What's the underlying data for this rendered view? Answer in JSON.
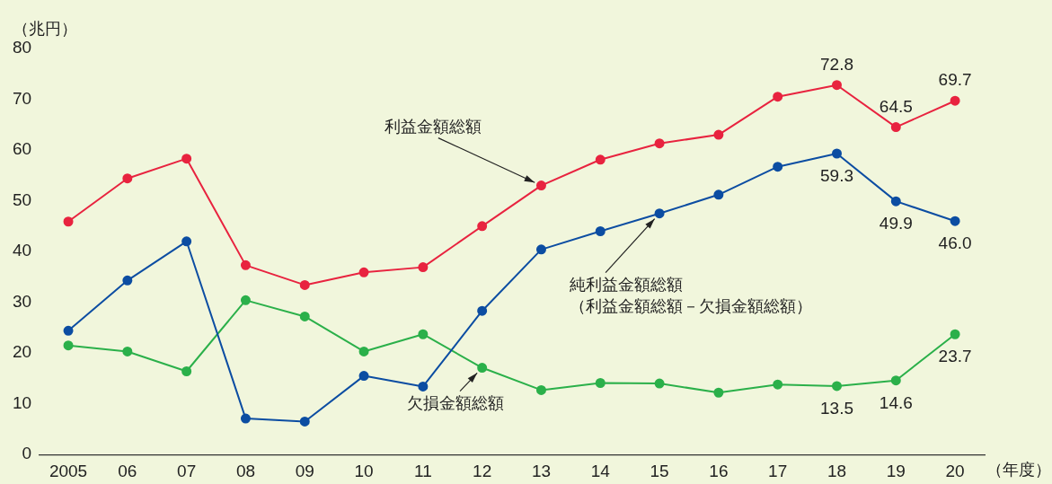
{
  "chart_data": {
    "type": "line",
    "ylabel": "（兆円）",
    "xlabel": "（年度）",
    "categories": [
      "2005",
      "06",
      "07",
      "08",
      "09",
      "10",
      "11",
      "12",
      "13",
      "14",
      "15",
      "16",
      "17",
      "18",
      "19",
      "20"
    ],
    "ylim": [
      0,
      80
    ],
    "yticks": [
      0,
      10,
      20,
      30,
      40,
      50,
      60,
      70,
      80
    ],
    "grid": false,
    "legend": false,
    "marker": "circle",
    "line_style": "solid",
    "series": [
      {
        "name": "利益金額総額",
        "color": "#e8233f",
        "values": [
          45.9,
          54.4,
          58.3,
          37.3,
          33.4,
          35.9,
          36.9,
          45.0,
          53.0,
          58.1,
          61.3,
          63.0,
          70.5,
          72.8,
          64.5,
          69.7
        ],
        "value_labels": [
          null,
          null,
          null,
          null,
          null,
          null,
          null,
          null,
          null,
          null,
          null,
          null,
          null,
          "72.8",
          "64.5",
          "69.7"
        ]
      },
      {
        "name": "純利益金額総額（利益金額総額－欠損金額総額）",
        "color": "#0c4da2",
        "values": [
          24.4,
          34.3,
          42.0,
          7.1,
          6.5,
          15.5,
          13.4,
          28.3,
          40.4,
          44.0,
          47.5,
          51.2,
          56.7,
          59.3,
          49.9,
          46.0
        ],
        "value_labels": [
          null,
          null,
          null,
          null,
          null,
          null,
          null,
          null,
          null,
          null,
          null,
          null,
          null,
          "59.3",
          "49.9",
          "46.0"
        ]
      },
      {
        "name": "欠損金額総額",
        "color": "#2bb04a",
        "values": [
          21.5,
          20.3,
          16.4,
          30.4,
          27.2,
          20.3,
          23.7,
          17.1,
          12.7,
          14.1,
          14.0,
          12.2,
          13.8,
          13.5,
          14.6,
          23.7
        ],
        "value_labels": [
          null,
          null,
          null,
          null,
          null,
          null,
          null,
          null,
          null,
          null,
          null,
          null,
          null,
          "13.5",
          "14.6",
          "23.7"
        ]
      }
    ]
  }
}
